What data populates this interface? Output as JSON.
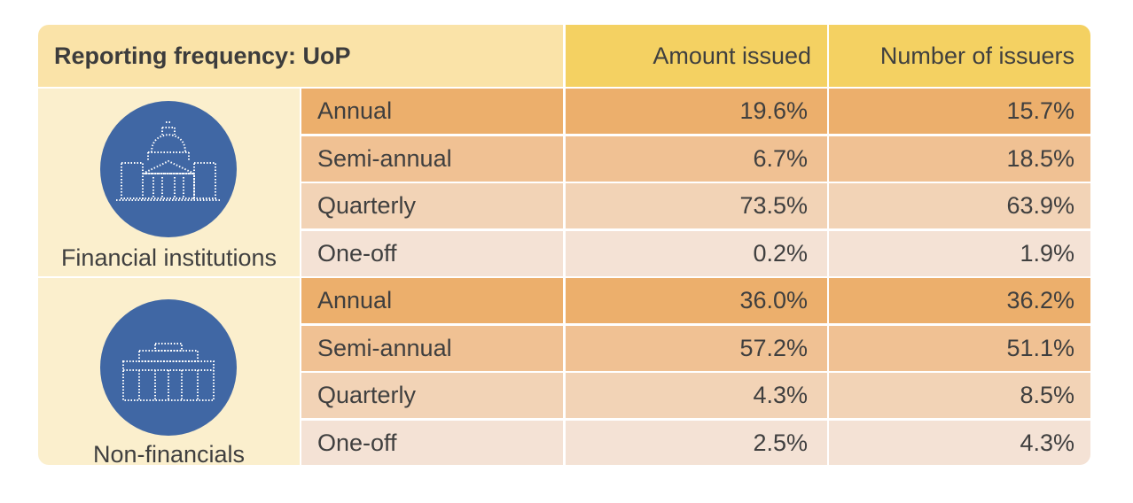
{
  "chart_data": {
    "type": "table",
    "title": "Reporting frequency: UoP",
    "columns": [
      "Amount issued",
      "Number of issuers"
    ],
    "groups": [
      {
        "label": "Financial institutions",
        "icon": "government-building-icon",
        "rows": [
          {
            "frequency": "Annual",
            "amount_issued": "19.6%",
            "number_of_issuers": "15.7%"
          },
          {
            "frequency": "Semi-annual",
            "amount_issued": "6.7%",
            "number_of_issuers": "18.5%"
          },
          {
            "frequency": "Quarterly",
            "amount_issued": "73.5%",
            "number_of_issuers": "63.9%"
          },
          {
            "frequency": "One-off",
            "amount_issued": "0.2%",
            "number_of_issuers": "1.9%"
          }
        ]
      },
      {
        "label": "Non-financials",
        "icon": "office-building-icon",
        "rows": [
          {
            "frequency": "Annual",
            "amount_issued": "36.0%",
            "number_of_issuers": "36.2%"
          },
          {
            "frequency": "Semi-annual",
            "amount_issued": "57.2%",
            "number_of_issuers": "51.1%"
          },
          {
            "frequency": "Quarterly",
            "amount_issued": "4.3%",
            "number_of_issuers": "8.5%"
          },
          {
            "frequency": "One-off",
            "amount_issued": "2.5%",
            "number_of_issuers": "4.3%"
          }
        ]
      }
    ],
    "colors": {
      "header_title": "#fae3a8",
      "header_columns": "#f4d162",
      "group_label": "#fbefcd",
      "icon_circle": "#4067a4",
      "row_annual": "#ecaf6c",
      "row_semi_annual": "#f0c193",
      "row_quarterly": "#f2d3b6",
      "row_one_off": "#f4e2d5"
    }
  }
}
